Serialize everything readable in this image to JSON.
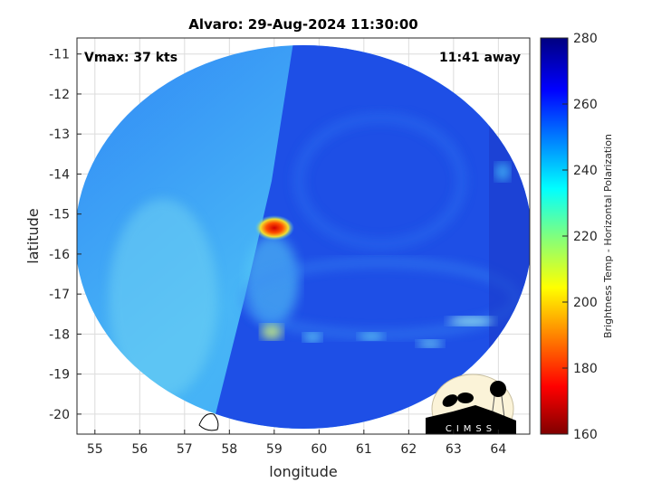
{
  "chart_data": {
    "type": "heatmap",
    "title": "Alvaro: 29-Aug-2024 11:30:00",
    "xlabel": "longitude",
    "ylabel": "latitude",
    "xlim": [
      54.6,
      64.7
    ],
    "ylim": [
      -20.5,
      -10.6
    ],
    "xticks": [
      55,
      56,
      57,
      58,
      59,
      60,
      61,
      62,
      63,
      64
    ],
    "yticks": [
      -11,
      -12,
      -13,
      -14,
      -15,
      -16,
      -17,
      -18,
      -19,
      -20
    ],
    "grid": true,
    "annotations": {
      "vmax": "Vmax: 37 kts",
      "away": "11:41 away"
    },
    "colorbar": {
      "label": "Brightness Temp - Horizontal Polarization",
      "range": [
        160,
        280
      ],
      "ticks": [
        160,
        180,
        200,
        220,
        240,
        260,
        280
      ],
      "colormap": "jet",
      "placement": "right"
    },
    "features": [
      {
        "lon": 59.1,
        "lat": -15.4,
        "value": 180,
        "kind": "coldest core"
      },
      {
        "lon": 59.0,
        "lat": -17.9,
        "value": 215
      },
      {
        "lon": 63.6,
        "lat": -17.6,
        "value": 232
      }
    ]
  },
  "logo": {
    "text": "CIMSS"
  },
  "colors": {
    "light_blue": "#3aa0ff",
    "deep_blue": "#1a3fe0",
    "core_red": "#d81010"
  }
}
